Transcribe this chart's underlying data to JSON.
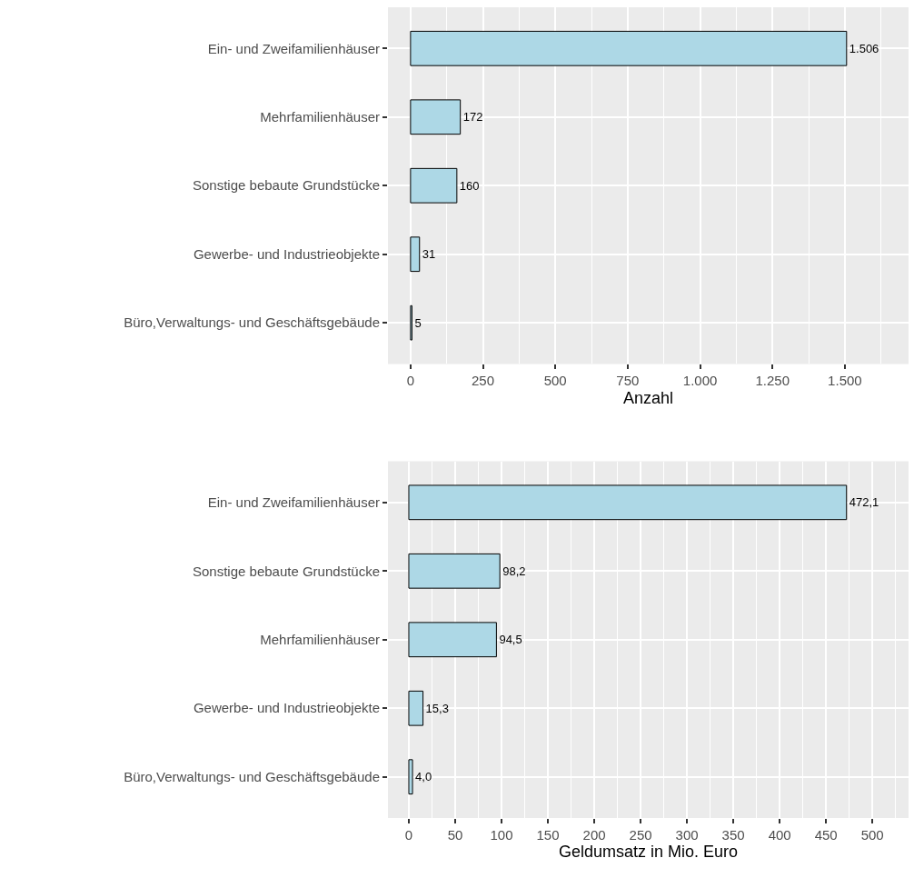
{
  "chart_data": [
    {
      "type": "bar",
      "orientation": "horizontal",
      "xlabel": "Anzahl",
      "categories": [
        "Ein- und Zweifamilienhäuser",
        "Mehrfamilienhäuser",
        "Sonstige bebaute Grundstücke",
        "Gewerbe- und Industrieobjekte",
        "Büro,Verwaltungs- und Geschäftsgebäude"
      ],
      "values": [
        1506,
        172,
        160,
        31,
        5
      ],
      "value_labels": [
        "1.506",
        "172",
        "160",
        "31",
        "5"
      ],
      "color": "#add8e6",
      "xlim": [
        -78,
        1720
      ],
      "xticks": [
        0,
        250,
        500,
        750,
        {
          "value": 1000,
          "label": "1.000"
        },
        {
          "value": 1250,
          "label": "1.250"
        },
        {
          "value": 1500,
          "label": "1.500"
        }
      ],
      "grid": true
    },
    {
      "type": "bar",
      "orientation": "horizontal",
      "xlabel": "Geldumsatz in Mio. Euro",
      "categories": [
        "Ein- und Zweifamilienhäuser",
        "Sonstige bebaute Grundstücke",
        "Mehrfamilienhäuser",
        "Gewerbe- und Industrieobjekte",
        "Büro,Verwaltungs- und Geschäftsgebäude"
      ],
      "values": [
        472.1,
        98.2,
        94.5,
        15.3,
        4.0
      ],
      "value_labels": [
        "472,1",
        "98,2",
        "94,5",
        "15,3",
        "4,0"
      ],
      "color": "#add8e6",
      "xlim": [
        -22.5,
        539
      ],
      "xticks": [
        0,
        50,
        100,
        150,
        200,
        250,
        300,
        350,
        400,
        450,
        500
      ],
      "grid": true
    }
  ]
}
